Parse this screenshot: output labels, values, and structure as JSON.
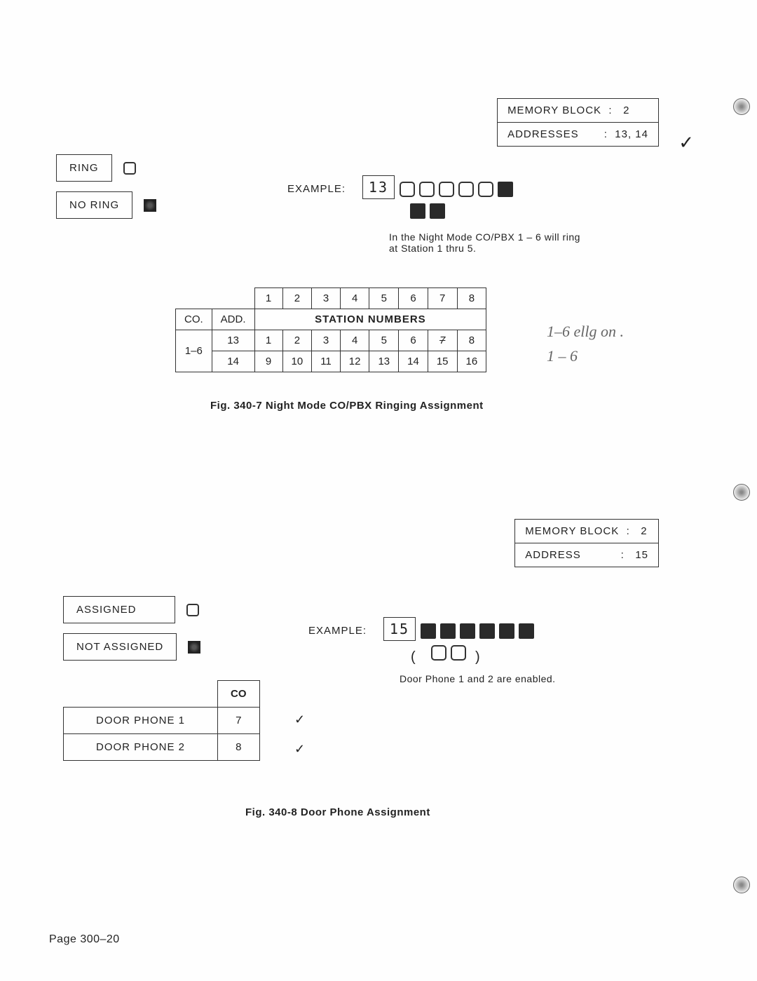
{
  "fig1": {
    "memory_block_label": "MEMORY BLOCK",
    "memory_block_value": "2",
    "addresses_label": "ADDRESSES",
    "addresses_value": "13, 14",
    "legend_ring": "RING",
    "legend_noring": "NO RING",
    "example_label": "EXAMPLE:",
    "example_display": "13",
    "example_lamps_row1": [
      "open",
      "open",
      "open",
      "open",
      "open",
      "filled"
    ],
    "example_lamps_row2": [
      "filled",
      "filled"
    ],
    "example_note_line1": "In the Night Mode CO/PBX 1 – 6 will ring",
    "example_note_line2": "at Station 1 thru 5.",
    "table": {
      "top_headers": [
        "1",
        "2",
        "3",
        "4",
        "5",
        "6",
        "7",
        "8"
      ],
      "span_label": "STATION NUMBERS",
      "co_header": "CO.",
      "add_header": "ADD.",
      "co_value": "1–6",
      "rows": [
        {
          "add": "13",
          "cells": [
            "1",
            "2",
            "3",
            "4",
            "5",
            "6",
            "7",
            "8"
          ],
          "strike_index": 6
        },
        {
          "add": "14",
          "cells": [
            "9",
            "10",
            "11",
            "12",
            "13",
            "14",
            "15",
            "16"
          ]
        }
      ]
    },
    "handwritten1": "1–6  ellg  on .",
    "handwritten2": "1 – 6",
    "caption": "Fig. 340-7    Night Mode CO/PBX Ringing Assignment"
  },
  "fig2": {
    "memory_block_label": "MEMORY BLOCK",
    "memory_block_value": "2",
    "address_label": "ADDRESS",
    "address_value": "15",
    "legend_assigned": "ASSIGNED",
    "legend_notassigned": "NOT ASSIGNED",
    "example_label": "EXAMPLE:",
    "example_display": "15",
    "example_lamps_row1": [
      "filled",
      "filled",
      "filled",
      "filled",
      "filled",
      "filled"
    ],
    "example_lamps_row2": [
      "open",
      "open"
    ],
    "example_note": "Door Phone 1 and 2 are enabled.",
    "table": {
      "co_header": "CO",
      "rows": [
        {
          "label": "DOOR PHONE  1",
          "co": "7",
          "check": "✓"
        },
        {
          "label": "DOOR PHONE  2",
          "co": "8",
          "check": "✓"
        }
      ]
    },
    "caption": "Fig. 340-8    Door Phone Assignment"
  },
  "page_number": "Page  300–20",
  "colors": {
    "border": "#333333",
    "text": "#222222",
    "handwritten": "#666666",
    "background": "#fefefe"
  }
}
